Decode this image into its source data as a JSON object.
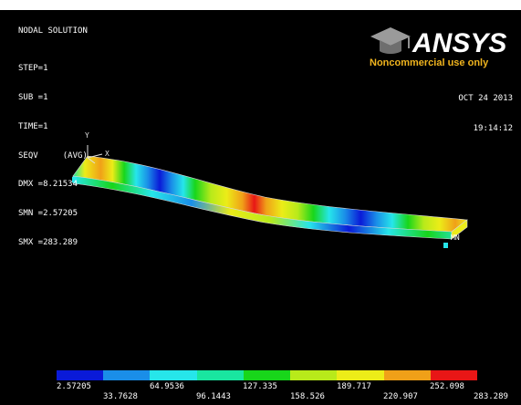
{
  "window": {
    "number": "1"
  },
  "header": {
    "title": "NODAL SOLUTION",
    "info": [
      "STEP=1",
      "SUB =1",
      "TIME=1",
      "SEQV     (AVG)",
      "DMX =8.21534",
      "SMN =2.57205",
      "SMX =283.289"
    ]
  },
  "logo": {
    "brand": "ANSYS",
    "tagline": "Noncommercial use only"
  },
  "timestamp": {
    "date": "OCT 24 2013",
    "time": "19:14:12"
  },
  "triad": {
    "y_label": "Y",
    "x_label": "X"
  },
  "model": {
    "min_marker": "MN"
  },
  "legend": {
    "colors": [
      "#0a1ad8",
      "#1a8ee8",
      "#26e6ea",
      "#19e6a0",
      "#18d61a",
      "#b8ea1a",
      "#ecec18",
      "#f0a018",
      "#e81616"
    ],
    "upper_labels": [
      "2.57205",
      "64.9536",
      "127.335",
      "189.717",
      "252.098"
    ],
    "lower_labels": [
      "33.7628",
      "96.1443",
      "158.526",
      "220.907",
      "283.289"
    ]
  }
}
